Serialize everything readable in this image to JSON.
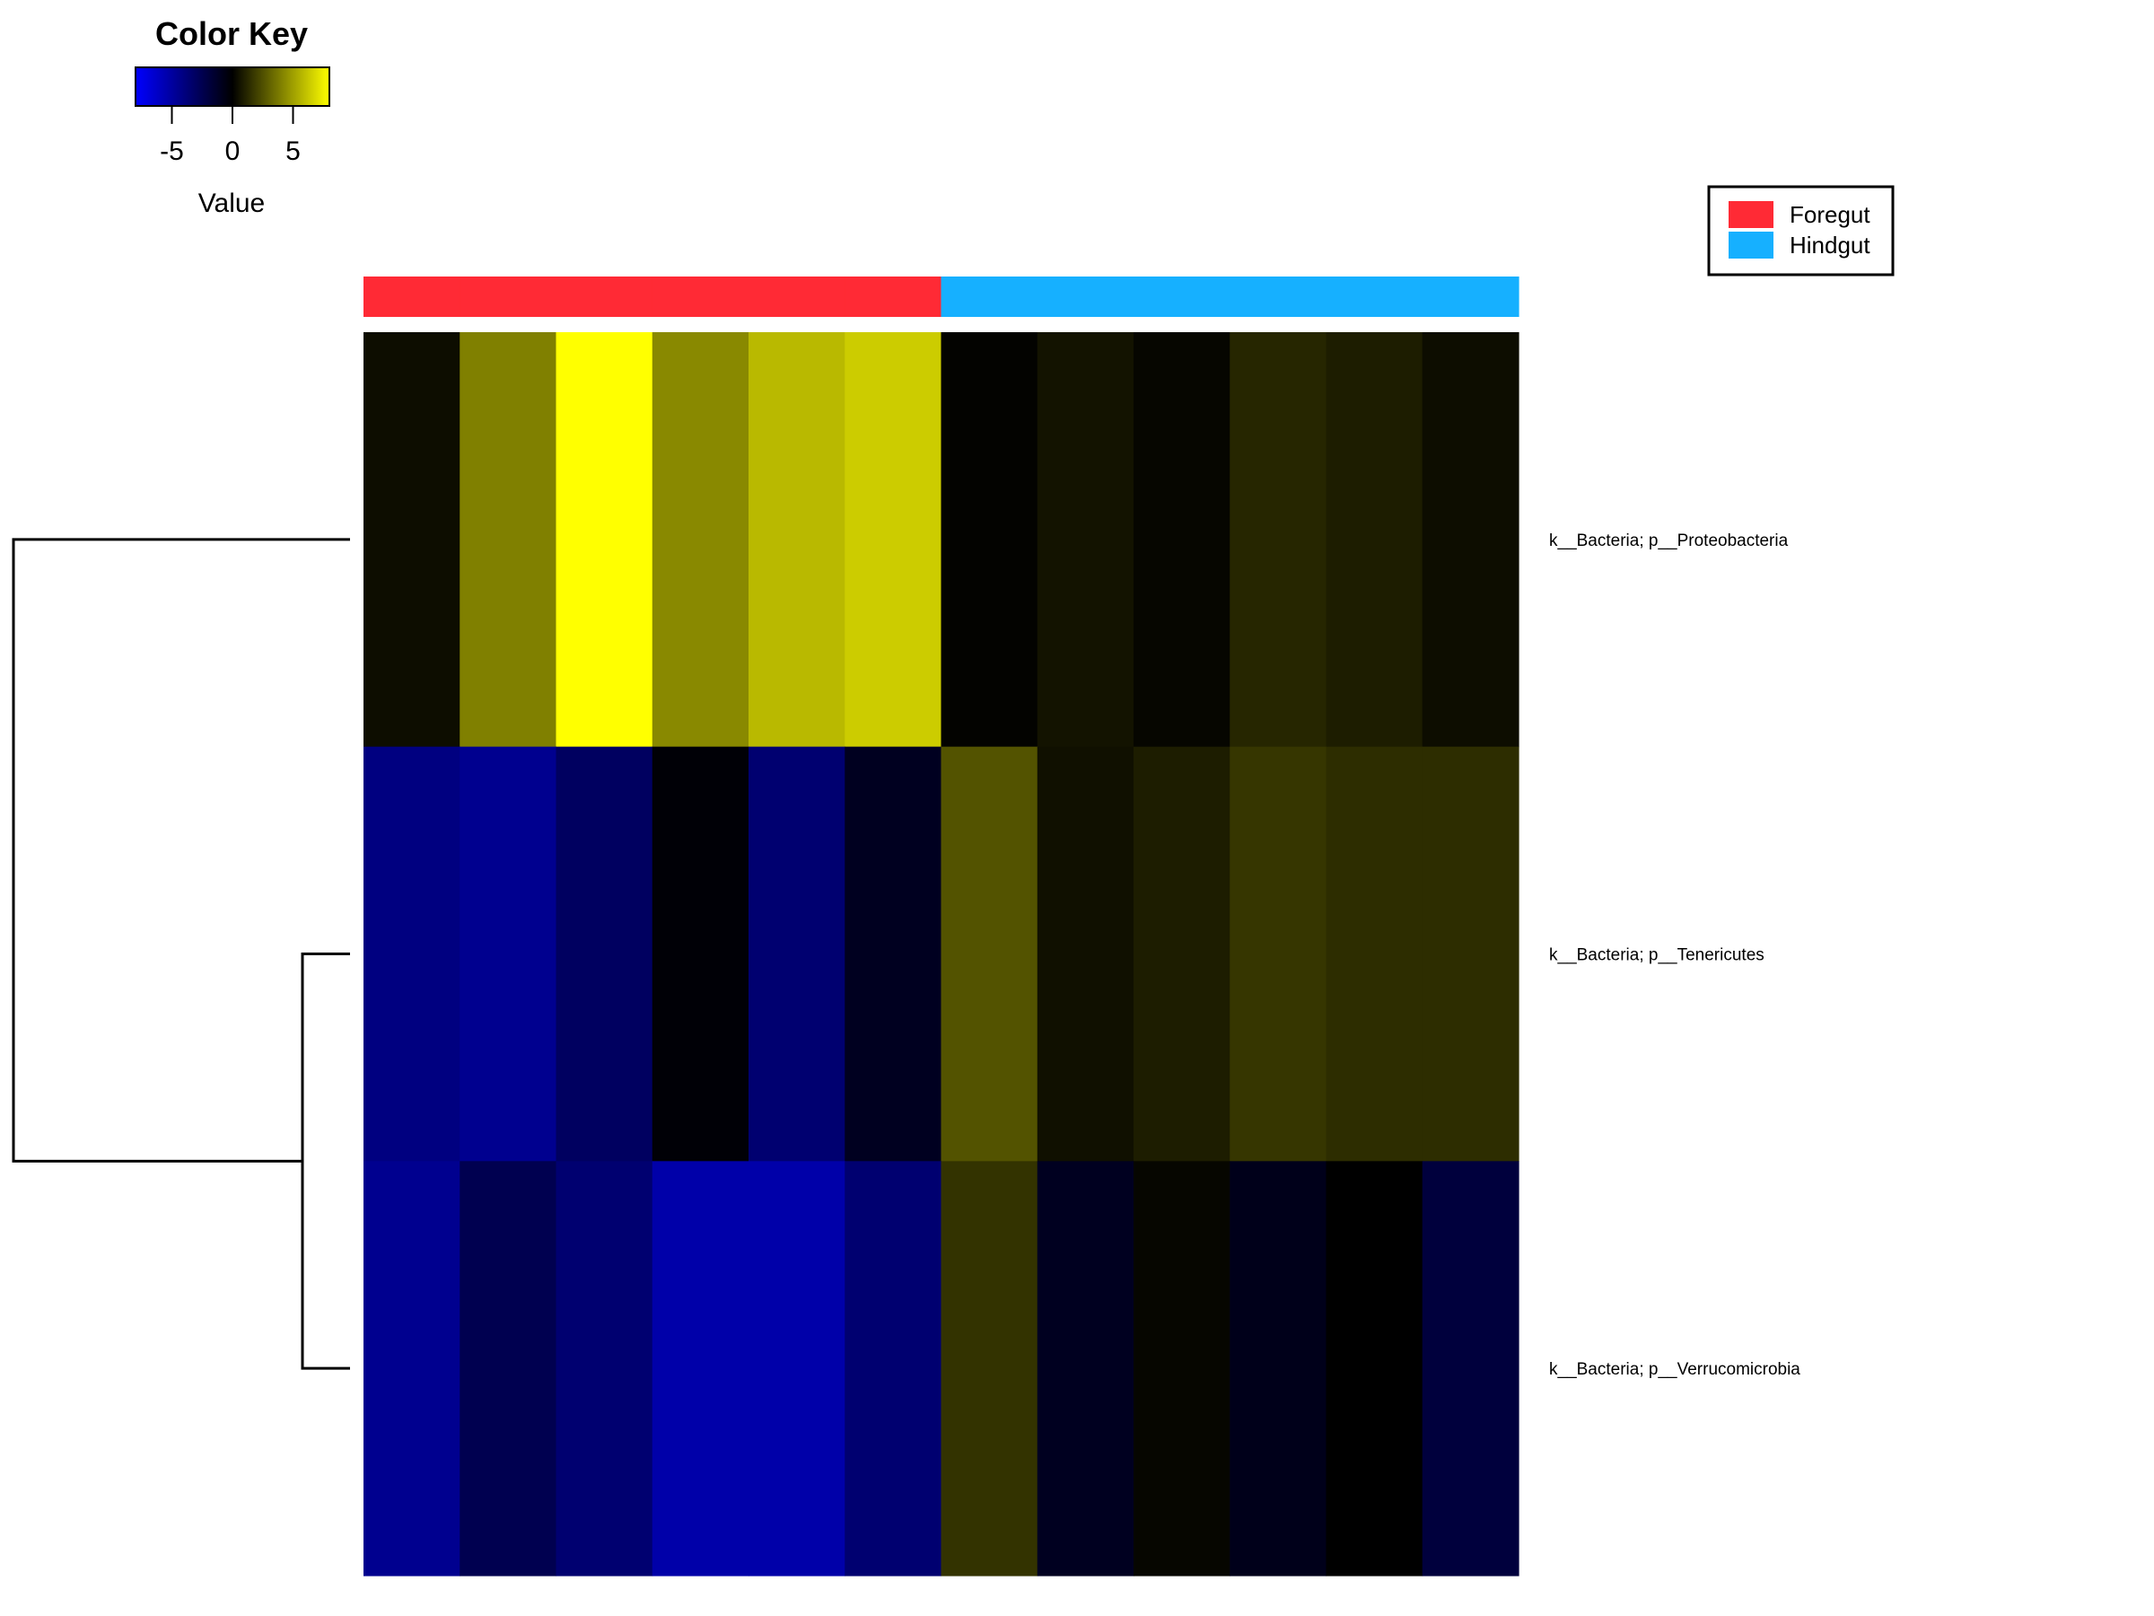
{
  "chart_data": {
    "type": "heatmap",
    "color_key": {
      "title": "Color Key",
      "label": "Value",
      "ticks": [
        -5,
        0,
        5
      ],
      "range": [
        -8,
        8
      ],
      "colors": {
        "low": "#0000ff",
        "mid": "#000000",
        "high": "#ffff00"
      }
    },
    "legend": {
      "placement": "top-right",
      "entries": [
        {
          "label": "Foregut",
          "color": "#ff2a35"
        },
        {
          "label": "Hindgut",
          "color": "#16b0ff"
        }
      ]
    },
    "column_groups": [
      "Foregut",
      "Foregut",
      "Foregut",
      "Foregut",
      "Foregut",
      "Foregut",
      "Hindgut",
      "Hindgut",
      "Hindgut",
      "Hindgut",
      "Hindgut",
      "Hindgut"
    ],
    "rows": [
      {
        "label": "k__Bacteria; p__Proteobacteria",
        "values": [
          0.4,
          4.0,
          8.0,
          4.3,
          5.8,
          6.4,
          0.1,
          0.6,
          0.2,
          1.2,
          0.9,
          0.4
        ]
      },
      {
        "label": "k__Bacteria; p__Tenericutes",
        "values": [
          -4.0,
          -4.5,
          -3.0,
          -0.2,
          -3.5,
          -1.0,
          2.6,
          0.5,
          0.9,
          1.7,
          1.4,
          1.4
        ]
      },
      {
        "label": "k__Bacteria; p__Verrucomicrobia",
        "values": [
          -4.5,
          -2.5,
          -3.5,
          -5.3,
          -5.3,
          -3.5,
          1.6,
          -1.0,
          0.2,
          -0.8,
          0.0,
          -1.9
        ]
      }
    ],
    "dendrogram": {
      "clusters": [
        [
          2,
          3
        ],
        [
          1,
          [
            2,
            3
          ]
        ]
      ]
    }
  }
}
